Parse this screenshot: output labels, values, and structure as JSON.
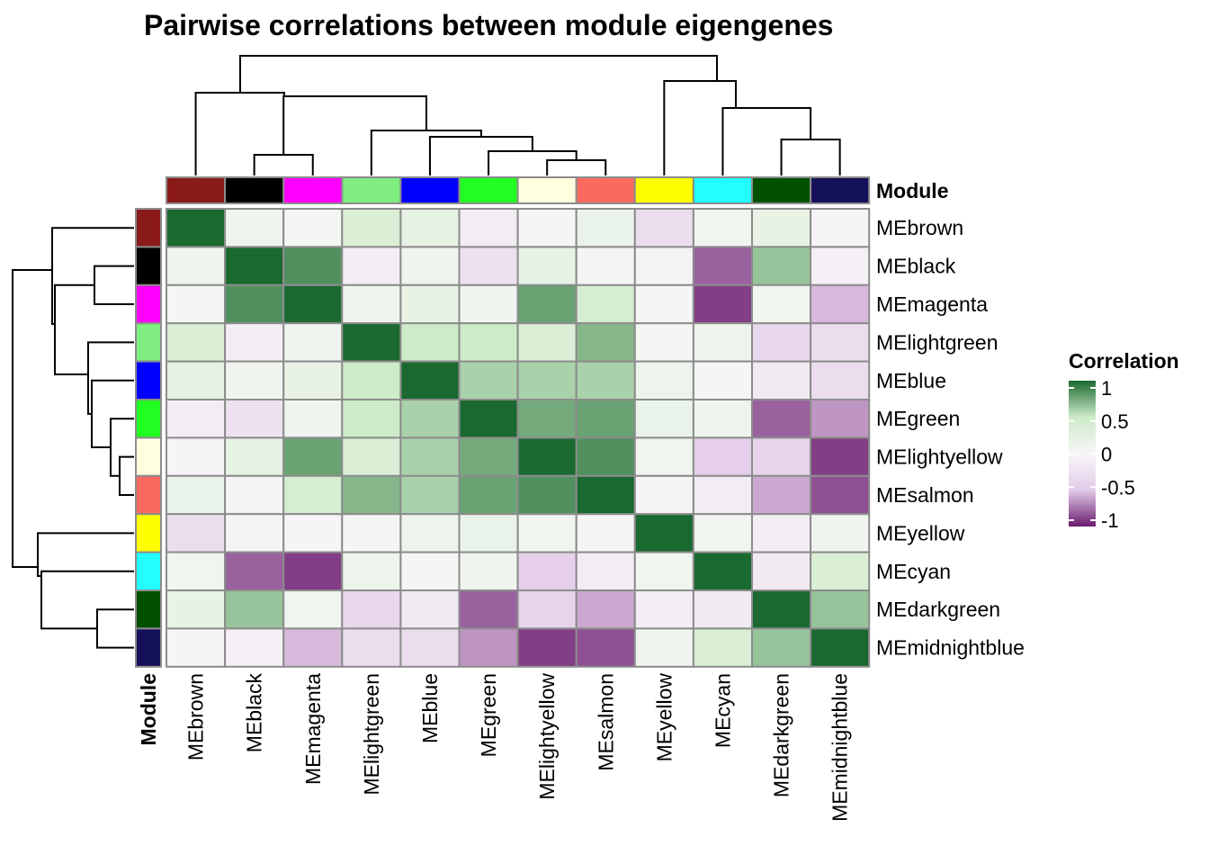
{
  "chart_data": {
    "type": "heatmap",
    "title": "Pairwise correlations between module eigengenes",
    "annotation_label": "Module",
    "modules": [
      "MEbrown",
      "MEblack",
      "MEmagenta",
      "MElightgreen",
      "MEblue",
      "MEgreen",
      "MElightyellow",
      "MEsalmon",
      "MEyellow",
      "MEcyan",
      "MEdarkgreen",
      "MEmidnightblue"
    ],
    "module_colors": [
      "#8B1A1A",
      "#000000",
      "#FF00FF",
      "#80EE80",
      "#0000FF",
      "#22FF22",
      "#FFFFE0",
      "#FA6A5F",
      "#FFFF00",
      "#22FFFF",
      "#005000",
      "#15105A"
    ],
    "legend": {
      "title": "Correlation",
      "ticks": [
        1,
        0.5,
        0,
        -0.5,
        -1
      ],
      "tick_labels": [
        "1",
        "0.5",
        "0",
        "-0.5",
        "-1"
      ],
      "colors": {
        "low": "#6A1B6E",
        "mid_low": "#E3CBE8",
        "mid": "#F7F7F7",
        "mid_high": "#CDEBC8",
        "high": "#1A6930"
      }
    },
    "matrix": [
      [
        1.0,
        0.1,
        0.05,
        0.35,
        0.2,
        -0.12,
        -0.03,
        0.15,
        -0.3,
        0.08,
        0.18,
        -0.03
      ],
      [
        0.1,
        1.0,
        0.85,
        -0.1,
        0.1,
        -0.25,
        0.2,
        -0.05,
        -0.05,
        -0.8,
        0.65,
        -0.08
      ],
      [
        0.05,
        0.85,
        1.0,
        0.1,
        0.18,
        0.1,
        0.78,
        0.4,
        -0.03,
        -0.9,
        0.08,
        -0.55
      ],
      [
        0.35,
        -0.1,
        0.1,
        1.0,
        0.5,
        0.5,
        0.35,
        0.7,
        0.03,
        0.12,
        -0.35,
        -0.3
      ],
      [
        0.2,
        0.1,
        0.18,
        0.5,
        1.0,
        0.6,
        0.6,
        0.6,
        0.12,
        0.03,
        -0.15,
        -0.3
      ],
      [
        -0.12,
        -0.25,
        0.1,
        0.5,
        0.6,
        1.0,
        0.75,
        0.78,
        0.15,
        0.1,
        -0.8,
        -0.65
      ],
      [
        -0.03,
        0.2,
        0.78,
        0.35,
        0.6,
        0.75,
        1.0,
        0.85,
        0.08,
        -0.45,
        -0.4,
        -0.9
      ],
      [
        0.15,
        -0.05,
        0.4,
        0.7,
        0.6,
        0.78,
        0.85,
        1.0,
        -0.03,
        -0.12,
        -0.6,
        -0.85
      ],
      [
        -0.3,
        -0.05,
        -0.03,
        0.03,
        0.12,
        0.15,
        0.08,
        -0.03,
        1.0,
        0.08,
        -0.1,
        0.1
      ],
      [
        0.08,
        -0.8,
        -0.9,
        0.12,
        0.03,
        0.1,
        -0.45,
        -0.12,
        0.08,
        1.0,
        -0.15,
        0.35
      ],
      [
        0.18,
        0.65,
        0.08,
        -0.35,
        -0.15,
        -0.8,
        -0.4,
        -0.6,
        -0.1,
        -0.15,
        1.0,
        0.65
      ],
      [
        -0.03,
        -0.08,
        -0.55,
        -0.3,
        -0.3,
        -0.65,
        -0.9,
        -0.85,
        0.1,
        0.35,
        0.65,
        1.0
      ]
    ]
  }
}
